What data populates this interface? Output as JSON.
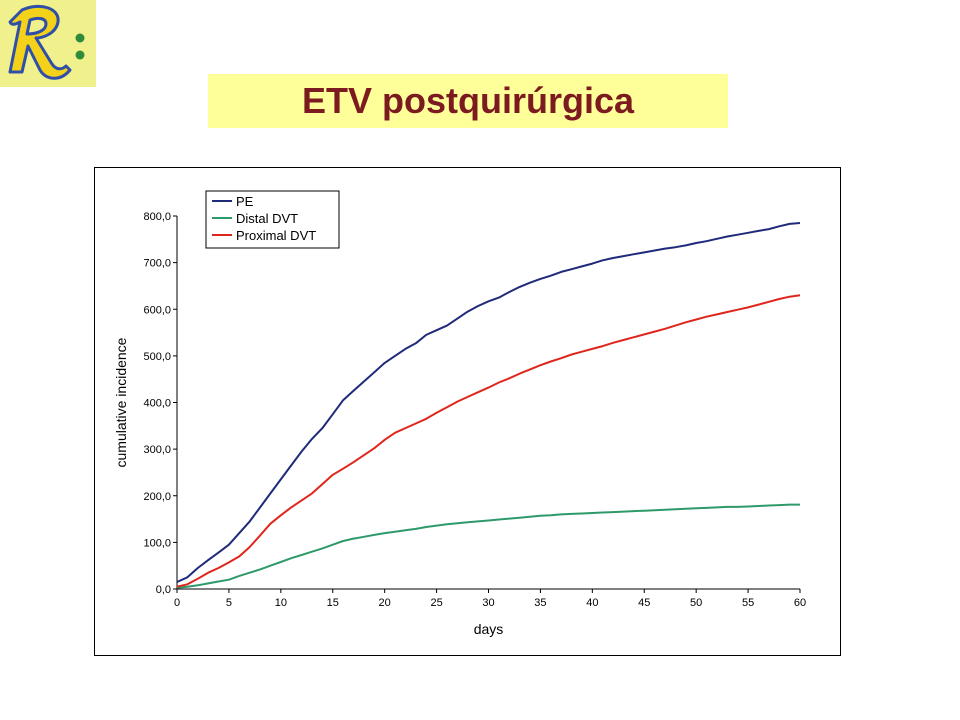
{
  "page": {
    "title": "ETV postquirúrgica",
    "logo_glyph": "R:"
  },
  "colors": {
    "title_text": "#7b1a1f",
    "title_band": "#ffff99",
    "logo_bg": "#f0f08c",
    "logo_fill": "#f5d21a",
    "logo_stroke": "#2f4fa8",
    "logo_dot": "#2e8b3a"
  },
  "chart_data": {
    "type": "line",
    "title": "",
    "xlabel": "days",
    "ylabel": "cumulative incidence",
    "xlim": [
      0,
      60
    ],
    "ylim": [
      0,
      800
    ],
    "x_ticks": [
      "0",
      "5",
      "10",
      "15",
      "20",
      "25",
      "30",
      "35",
      "40",
      "45",
      "50",
      "55",
      "60"
    ],
    "y_ticks": [
      "0,0",
      "100,0",
      "200,0",
      "300,0",
      "400,0",
      "500,0",
      "600,0",
      "700,0",
      "800,0"
    ],
    "grid": false,
    "legend_position": "top-left",
    "x": [
      0,
      1,
      2,
      3,
      4,
      5,
      6,
      7,
      8,
      9,
      10,
      11,
      12,
      13,
      14,
      15,
      16,
      17,
      18,
      19,
      20,
      21,
      22,
      23,
      24,
      25,
      26,
      27,
      28,
      29,
      30,
      31,
      32,
      33,
      34,
      35,
      36,
      37,
      38,
      39,
      40,
      41,
      42,
      43,
      44,
      45,
      46,
      47,
      48,
      49,
      50,
      51,
      52,
      53,
      54,
      55,
      56,
      57,
      58,
      59,
      60
    ],
    "series": [
      {
        "name": "PE",
        "color": "#1f2a7a",
        "values": [
          15,
          25,
          45,
          62,
          78,
          95,
          120,
          145,
          175,
          205,
          235,
          265,
          295,
          322,
          345,
          375,
          405,
          425,
          445,
          465,
          485,
          500,
          515,
          527,
          545,
          555,
          565,
          580,
          595,
          607,
          617,
          625,
          637,
          648,
          657,
          665,
          672,
          680,
          686,
          692,
          698,
          705,
          710,
          714,
          718,
          722,
          726,
          730,
          733,
          737,
          742,
          746,
          751,
          756,
          760,
          764,
          768,
          772,
          778,
          783,
          785
        ]
      },
      {
        "name": "Distal DVT",
        "color": "#2e9a6a",
        "values": [
          3,
          5,
          8,
          12,
          16,
          20,
          28,
          35,
          42,
          50,
          58,
          66,
          73,
          80,
          87,
          95,
          103,
          108,
          112,
          116,
          120,
          123,
          126,
          129,
          133,
          136,
          139,
          141,
          143,
          145,
          147,
          149,
          151,
          153,
          155,
          157,
          158,
          160,
          161,
          162,
          163,
          164,
          165,
          166,
          167,
          168,
          169,
          170,
          171,
          172,
          173,
          174,
          175,
          176,
          176,
          177,
          178,
          179,
          180,
          181,
          181
        ]
      },
      {
        "name": "Proximal DVT",
        "color": "#e0261c",
        "values": [
          5,
          10,
          22,
          35,
          45,
          57,
          70,
          90,
          115,
          140,
          158,
          175,
          190,
          205,
          225,
          245,
          258,
          272,
          287,
          302,
          320,
          335,
          345,
          355,
          365,
          378,
          390,
          402,
          412,
          422,
          432,
          443,
          452,
          462,
          471,
          480,
          488,
          495,
          503,
          509,
          515,
          521,
          528,
          534,
          540,
          546,
          552,
          558,
          565,
          572,
          578,
          584,
          589,
          594,
          599,
          604,
          610,
          616,
          622,
          627,
          630
        ]
      }
    ]
  }
}
